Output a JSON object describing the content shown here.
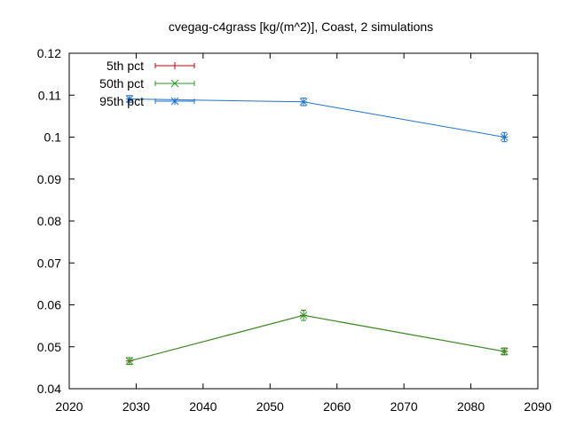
{
  "chart_data": {
    "type": "line",
    "title": "cvegag-c4grass [kg/(m^2)], Coast, 2 simulations",
    "xlabel": "",
    "ylabel": "",
    "xlim": [
      2020,
      2090
    ],
    "ylim": [
      0.04,
      0.12
    ],
    "x_ticks": [
      2020,
      2030,
      2040,
      2050,
      2060,
      2070,
      2080,
      2090
    ],
    "x_tick_labels": [
      "2020",
      "2030",
      "2040",
      "2050",
      "2060",
      "2070",
      "2080",
      "2090"
    ],
    "y_ticks": [
      0.04,
      0.05,
      0.06,
      0.07,
      0.08,
      0.09,
      0.1,
      0.11,
      0.12
    ],
    "y_tick_labels": [
      "0.04",
      "0.05",
      "0.06",
      "0.07",
      "0.08",
      "0.09",
      "0.1",
      "0.11",
      "0.12"
    ],
    "grid": false,
    "legend_position": "top-left",
    "series": [
      {
        "name": "5th pct",
        "color": "#cc0000",
        "marker": "plus",
        "x": [
          2029,
          2055,
          2085
        ],
        "y": [
          0.0466,
          0.0575,
          0.0489
        ],
        "err": [
          0.0008,
          0.0012,
          0.0008
        ]
      },
      {
        "name": "50th pct",
        "color": "#229922",
        "marker": "cross",
        "x": [
          2029,
          2055,
          2085
        ],
        "y": [
          0.0466,
          0.0575,
          0.0489
        ],
        "err": [
          0.0008,
          0.0012,
          0.0008
        ]
      },
      {
        "name": "95th pct",
        "color": "#1f73cc",
        "marker": "star",
        "x": [
          2029,
          2055,
          2085
        ],
        "y": [
          0.1091,
          0.1084,
          0.1
        ],
        "err": [
          0.0008,
          0.0009,
          0.0011
        ]
      }
    ]
  }
}
